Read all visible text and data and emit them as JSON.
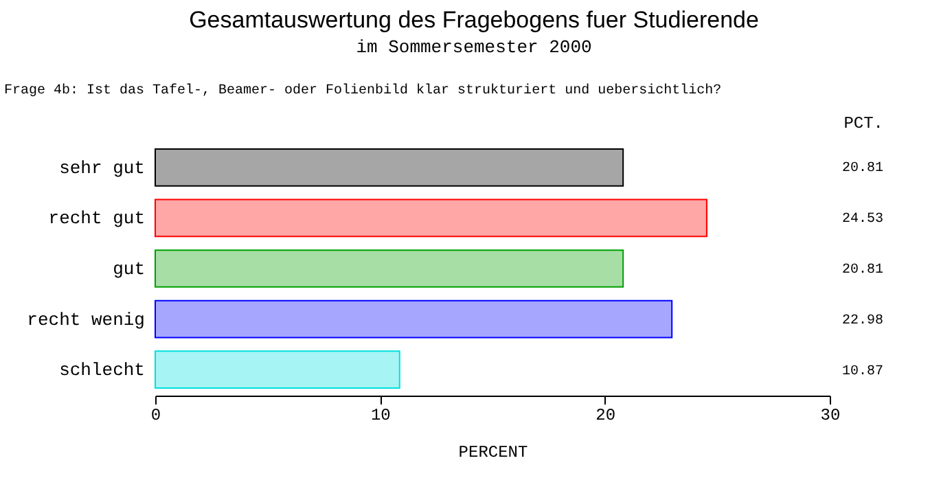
{
  "chart_data": {
    "type": "bar",
    "orientation": "horizontal",
    "title": "Gesamtauswertung des Fragebogens fuer Studierende",
    "subtitle": "im Sommersemester 2000",
    "xlabel": "PERCENT",
    "annotations": [
      "Frage 4b: Ist das Tafel-, Beamer- oder Folienbild klar strukturiert und uebersichtlich?",
      "PCT."
    ],
    "categories": [
      "sehr gut",
      "recht gut",
      "gut",
      "recht wenig",
      "schlecht"
    ],
    "values": [
      20.81,
      24.53,
      20.81,
      22.98,
      10.87
    ],
    "colors": [
      "#000000",
      "#ff0000",
      "#00a000",
      "#0000ff",
      "#00e0e0"
    ],
    "xlim": [
      0,
      30
    ],
    "xticks": [
      0,
      10,
      20,
      30
    ],
    "data_labels": true
  }
}
